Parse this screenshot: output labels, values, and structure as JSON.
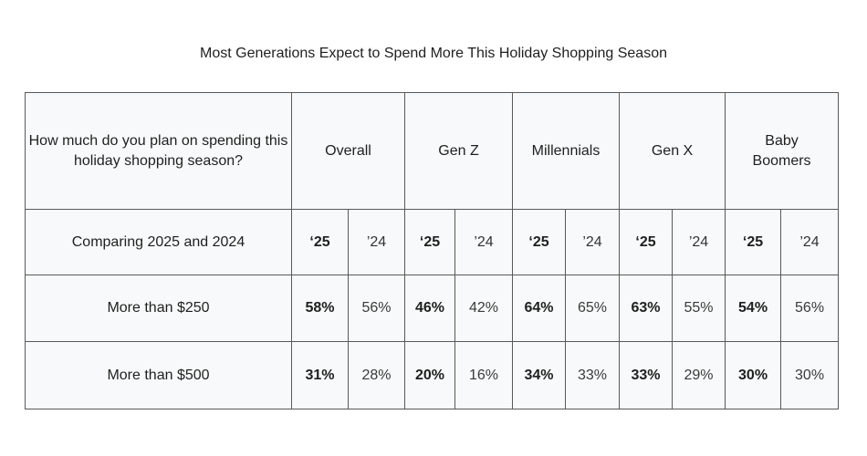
{
  "chart_data": {
    "type": "table",
    "title": "Most Generations Expect to Spend More This Holiday Shopping Season",
    "question": "How much do you plan on spending this holiday shopping season?",
    "subheader_label": "Comparing 2025 and 2024",
    "years": [
      "‘25",
      "’24"
    ],
    "groups": [
      "Overall",
      "Gen Z",
      "Millennials",
      "Gen X",
      "Baby Boomers"
    ],
    "rows": [
      {
        "label": "More than $250",
        "values": [
          {
            "y25": "58%",
            "y24": "56%"
          },
          {
            "y25": "46%",
            "y24": "42%"
          },
          {
            "y25": "64%",
            "y24": "65%"
          },
          {
            "y25": "63%",
            "y24": "55%"
          },
          {
            "y25": "54%",
            "y24": "56%"
          }
        ]
      },
      {
        "label": "More than $500",
        "values": [
          {
            "y25": "31%",
            "y24": "28%"
          },
          {
            "y25": "20%",
            "y24": "16%"
          },
          {
            "y25": "34%",
            "y24": "33%"
          },
          {
            "y25": "33%",
            "y24": "29%"
          },
          {
            "y25": "30%",
            "y24": "30%"
          }
        ]
      }
    ]
  },
  "colors": {
    "table_background": "#f8f9fa",
    "border": "#595959",
    "text": "#1f1f1f"
  }
}
